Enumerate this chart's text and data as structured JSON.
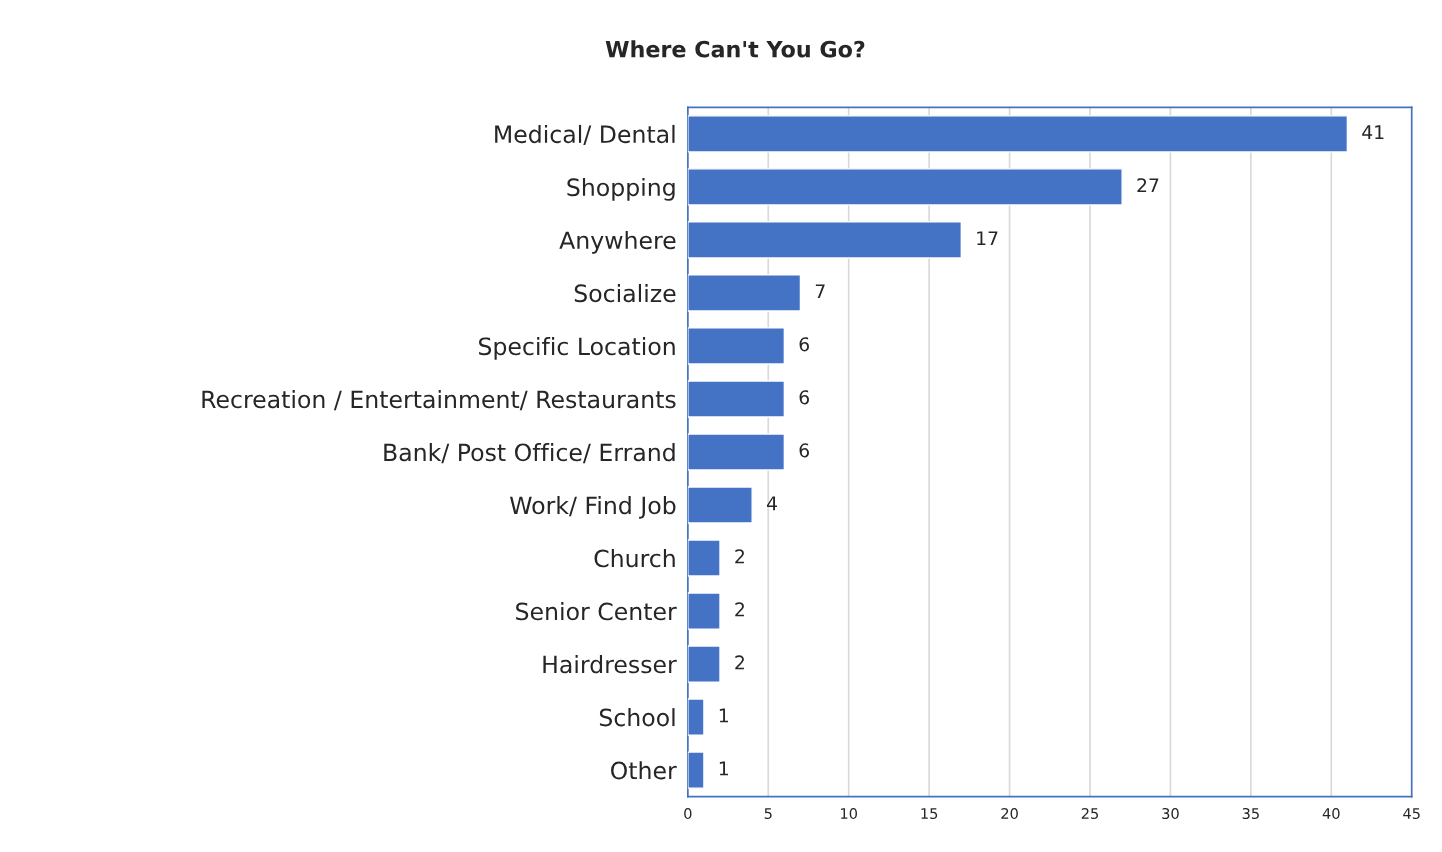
{
  "chart_data": {
    "type": "bar",
    "orientation": "horizontal",
    "title": "Where Can't You Go?",
    "categories": [
      "Medical/ Dental",
      "Shopping",
      "Anywhere",
      "Socialize",
      "Specific Location",
      "Recreation / Entertainment/ Restaurants",
      "Bank/ Post Office/ Errand",
      "Work/ Find Job",
      "Church",
      "Senior Center",
      "Hairdresser",
      "School",
      "Other"
    ],
    "values": [
      41,
      27,
      17,
      7,
      6,
      6,
      6,
      4,
      2,
      2,
      2,
      1,
      1
    ],
    "color": "#4472c4",
    "xlim": [
      0,
      45
    ],
    "xticks": [
      0,
      5,
      10,
      15,
      20,
      25,
      30,
      35,
      40,
      45
    ],
    "grid": "x",
    "data_labels": true
  }
}
